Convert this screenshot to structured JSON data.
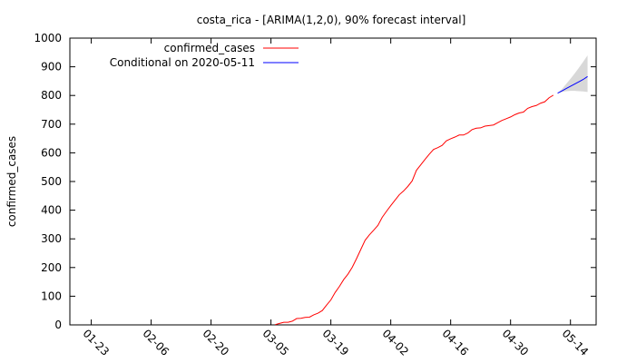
{
  "chart_data": {
    "type": "line",
    "title": "costa_rica -  [ARIMA(1,2,0), 90% forecast interval]",
    "ylabel": "confirmed_cases",
    "xlabel": "",
    "ylim": [
      0,
      1000
    ],
    "yticks": [
      0,
      100,
      200,
      300,
      400,
      500,
      600,
      700,
      800,
      900,
      1000
    ],
    "xticks": [
      "01-23",
      "02-06",
      "02-20",
      "03-05",
      "03-19",
      "04-02",
      "04-16",
      "04-30",
      "05-14"
    ],
    "x_range": [
      "2020-01-18",
      "2020-05-20"
    ],
    "legend_position": "top-center",
    "series": [
      {
        "name": "confirmed_cases",
        "color": "#ff0000",
        "points": [
          [
            "2020-03-06",
            1
          ],
          [
            "2020-03-07",
            5
          ],
          [
            "2020-03-08",
            9
          ],
          [
            "2020-03-09",
            9
          ],
          [
            "2020-03-10",
            13
          ],
          [
            "2020-03-11",
            22
          ],
          [
            "2020-03-12",
            23
          ],
          [
            "2020-03-13",
            26
          ],
          [
            "2020-03-14",
            27
          ],
          [
            "2020-03-15",
            35
          ],
          [
            "2020-03-16",
            41
          ],
          [
            "2020-03-17",
            50
          ],
          [
            "2020-03-18",
            69
          ],
          [
            "2020-03-19",
            87
          ],
          [
            "2020-03-20",
            113
          ],
          [
            "2020-03-21",
            134
          ],
          [
            "2020-03-22",
            158
          ],
          [
            "2020-03-23",
            177
          ],
          [
            "2020-03-24",
            201
          ],
          [
            "2020-03-25",
            231
          ],
          [
            "2020-03-26",
            263
          ],
          [
            "2020-03-27",
            295
          ],
          [
            "2020-03-28",
            314
          ],
          [
            "2020-03-29",
            330
          ],
          [
            "2020-03-30",
            347
          ],
          [
            "2020-03-31",
            375
          ],
          [
            "2020-04-01",
            396
          ],
          [
            "2020-04-02",
            416
          ],
          [
            "2020-04-03",
            435
          ],
          [
            "2020-04-04",
            454
          ],
          [
            "2020-04-05",
            467
          ],
          [
            "2020-04-06",
            483
          ],
          [
            "2020-04-07",
            502
          ],
          [
            "2020-04-08",
            539
          ],
          [
            "2020-04-09",
            558
          ],
          [
            "2020-04-10",
            577
          ],
          [
            "2020-04-11",
            595
          ],
          [
            "2020-04-12",
            612
          ],
          [
            "2020-04-13",
            618
          ],
          [
            "2020-04-14",
            626
          ],
          [
            "2020-04-15",
            642
          ],
          [
            "2020-04-16",
            649
          ],
          [
            "2020-04-17",
            655
          ],
          [
            "2020-04-18",
            662
          ],
          [
            "2020-04-19",
            662
          ],
          [
            "2020-04-20",
            669
          ],
          [
            "2020-04-21",
            681
          ],
          [
            "2020-04-22",
            686
          ],
          [
            "2020-04-23",
            687
          ],
          [
            "2020-04-24",
            693
          ],
          [
            "2020-04-25",
            695
          ],
          [
            "2020-04-26",
            697
          ],
          [
            "2020-04-27",
            705
          ],
          [
            "2020-04-28",
            713
          ],
          [
            "2020-04-29",
            719
          ],
          [
            "2020-04-30",
            725
          ],
          [
            "2020-05-01",
            733
          ],
          [
            "2020-05-02",
            739
          ],
          [
            "2020-05-03",
            742
          ],
          [
            "2020-05-04",
            755
          ],
          [
            "2020-05-05",
            761
          ],
          [
            "2020-05-06",
            765
          ],
          [
            "2020-05-07",
            773
          ],
          [
            "2020-05-08",
            778
          ],
          [
            "2020-05-09",
            792
          ],
          [
            "2020-05-10",
            801
          ]
        ]
      },
      {
        "name": "Conditional on 2020-05-11",
        "color": "#0000ff",
        "points": [
          [
            "2020-05-11",
            808
          ],
          [
            "2020-05-12",
            816
          ],
          [
            "2020-05-13",
            824
          ],
          [
            "2020-05-14",
            832
          ],
          [
            "2020-05-15",
            840
          ],
          [
            "2020-05-16",
            848
          ],
          [
            "2020-05-17",
            856
          ],
          [
            "2020-05-18",
            866
          ]
        ]
      }
    ],
    "forecast_interval": {
      "color": "#d8d8d8",
      "dates": [
        "2020-05-11",
        "2020-05-12",
        "2020-05-13",
        "2020-05-14",
        "2020-05-15",
        "2020-05-16",
        "2020-05-17",
        "2020-05-18"
      ],
      "lower": [
        808,
        812,
        815,
        816,
        816,
        815,
        814,
        812
      ],
      "upper": [
        808,
        822,
        840,
        858,
        877,
        897,
        918,
        940
      ]
    }
  }
}
